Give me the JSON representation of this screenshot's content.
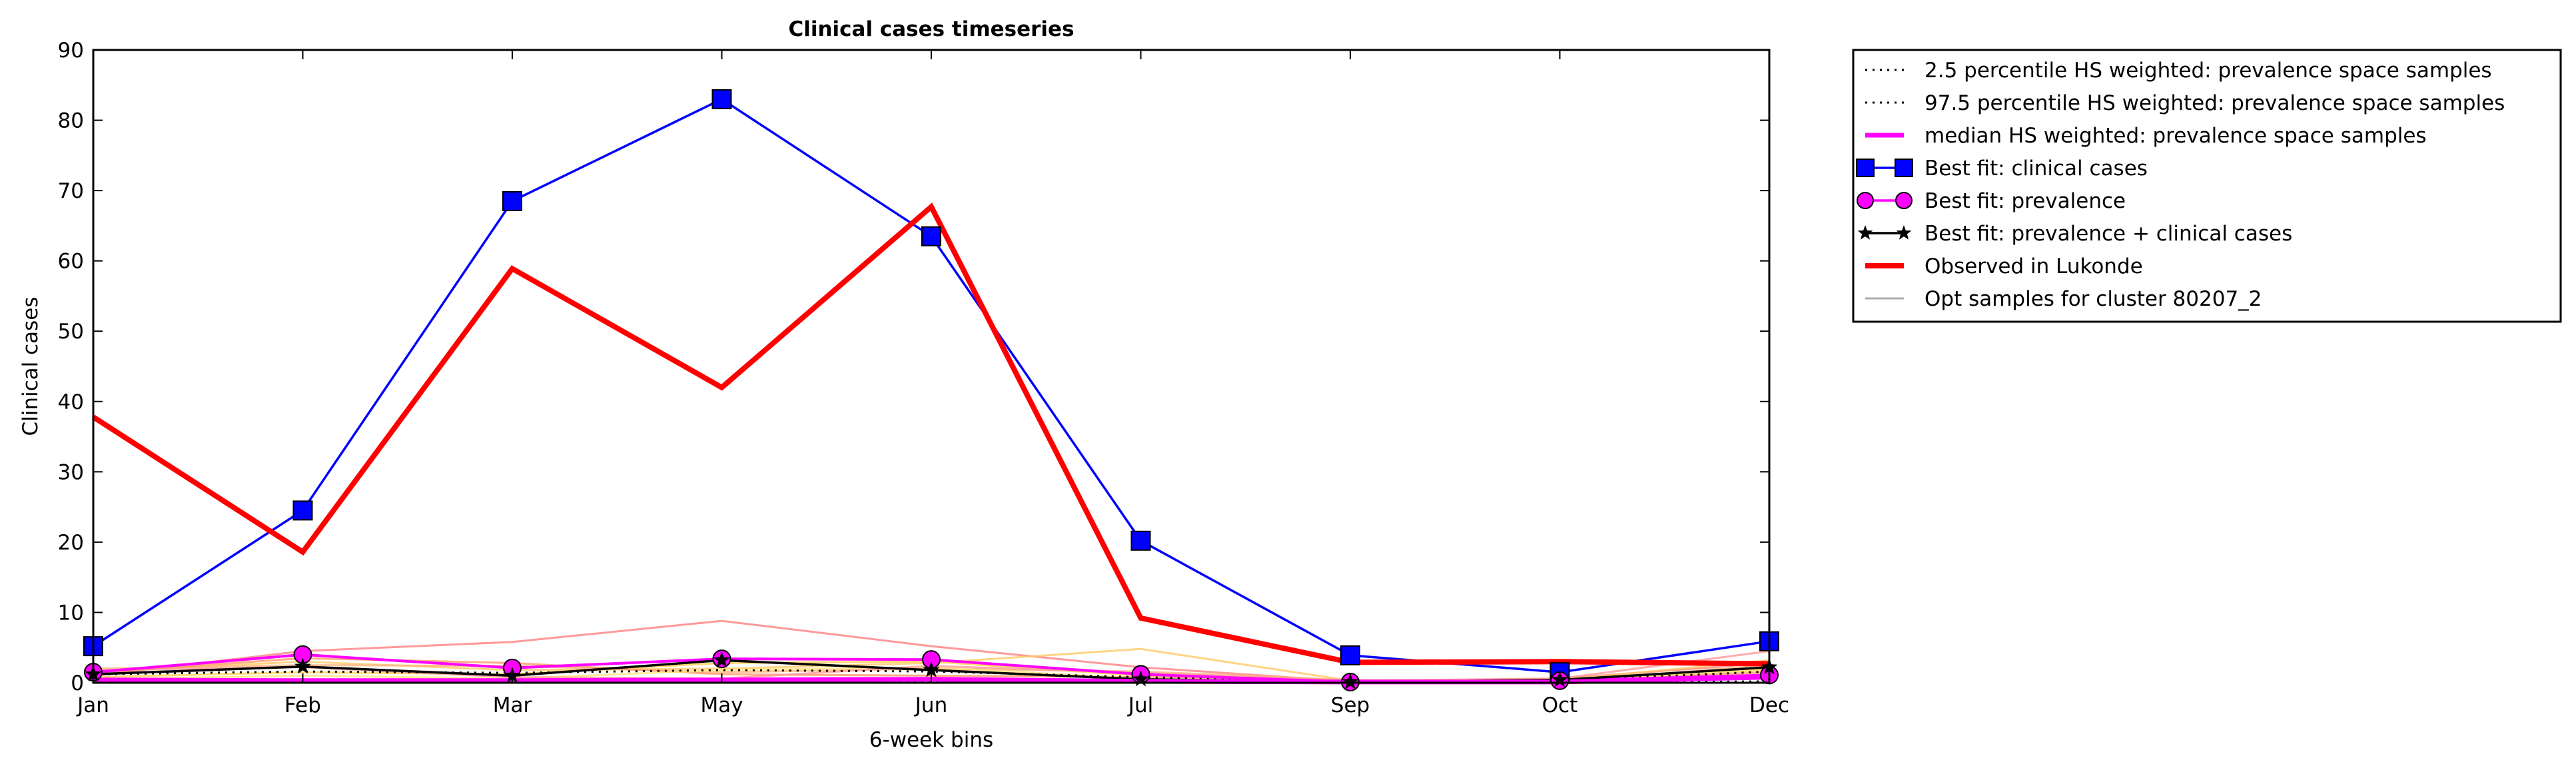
{
  "chart_data": {
    "type": "line",
    "title": "Clinical cases timeseries",
    "xlabel": "6-week bins",
    "ylabel": "Clinical cases",
    "categories": [
      "Jan",
      "Feb",
      "Mar",
      "May",
      "Jun",
      "Jul",
      "Sep",
      "Oct",
      "Dec"
    ],
    "ylim": [
      0,
      90
    ],
    "yticks": [
      0,
      10,
      20,
      30,
      40,
      50,
      60,
      70,
      80,
      90
    ],
    "grid": false,
    "legend_position": "outside-top-right",
    "legend": [
      {
        "label": "2.5 percentile HS weighted: prevalence space samples",
        "style": "dotted",
        "color": "#000000"
      },
      {
        "label": "97.5 percentile HS weighted: prevalence space samples",
        "style": "dotted",
        "color": "#000000"
      },
      {
        "label": "median HS weighted: prevalence space samples",
        "style": "solid",
        "color": "#ff00ff"
      },
      {
        "label": "Best fit: clinical cases",
        "style": "solid",
        "color": "#0000ff",
        "marker": "square"
      },
      {
        "label": "Best fit: prevalence",
        "style": "solid",
        "color": "#ff00ff",
        "marker": "circle"
      },
      {
        "label": "Best fit: prevalence + clinical cases",
        "style": "solid",
        "color": "#000000",
        "marker": "star"
      },
      {
        "label": "Observed in Lukonde",
        "style": "solid",
        "color": "#ff0000"
      },
      {
        "label": "Opt samples for cluster 80207_2",
        "style": "solid",
        "color": "#999999"
      }
    ],
    "series": [
      {
        "name": "Best fit: clinical cases",
        "color": "#0000ff",
        "marker": "square",
        "values": [
          5.2,
          24.5,
          68.5,
          83,
          63.5,
          20.2,
          3.9,
          1.5,
          5.9
        ]
      },
      {
        "name": "Observed in Lukonde",
        "color": "#ff0000",
        "values": [
          37.8,
          18.6,
          58.9,
          42,
          67.7,
          9.2,
          2.9,
          3.0,
          2.7
        ]
      },
      {
        "name": "Best fit: prevalence",
        "color": "#ff00ff",
        "marker": "circle",
        "values": [
          1.5,
          4.0,
          2.1,
          3.4,
          3.3,
          1.2,
          0.1,
          0.3,
          1.1
        ]
      },
      {
        "name": "Best fit: prevalence + clinical cases",
        "color": "#000000",
        "marker": "star",
        "values": [
          1.2,
          2.3,
          1.0,
          3.2,
          1.8,
          0.5,
          0.1,
          0.4,
          2.2
        ]
      },
      {
        "name": "median HS weighted: prevalence space samples",
        "color": "#ff00ff",
        "values": [
          0.4,
          0.3,
          0.3,
          0.4,
          0.5,
          0.2,
          0.1,
          0.1,
          0.8
        ]
      }
    ],
    "sample_lines": [
      {
        "color": "#ff7f7f",
        "values": [
          1.0,
          4.5,
          5.8,
          8.8,
          5.2,
          2.2,
          0.2,
          0.6,
          2.8
        ]
      },
      {
        "color": "#ffc966",
        "values": [
          1.6,
          3.0,
          1.8,
          2.0,
          2.8,
          4.8,
          0.3,
          0.4,
          3.2
        ]
      },
      {
        "color": "#ffb380",
        "values": [
          2.0,
          2.5,
          2.4,
          1.5,
          2.0,
          1.6,
          0.4,
          0.2,
          2.5
        ]
      },
      {
        "color": "#ffd24d",
        "values": [
          0.8,
          1.5,
          1.2,
          2.8,
          3.0,
          1.0,
          0.3,
          0.5,
          1.8
        ]
      },
      {
        "color": "#ff9966",
        "values": [
          1.4,
          3.5,
          2.8,
          1.2,
          1.0,
          0.8,
          0.2,
          0.3,
          1.5
        ]
      },
      {
        "color": "#ffe680",
        "values": [
          0.5,
          1.0,
          0.6,
          1.8,
          2.2,
          0.6,
          0.1,
          0.2,
          2.0
        ]
      },
      {
        "color": "#ff9999",
        "values": [
          1.8,
          2.2,
          0.8,
          0.6,
          2.4,
          1.4,
          0.3,
          0.6,
          4.5
        ]
      }
    ],
    "percentile_lines": [
      {
        "label": "2.5",
        "values": [
          0.1,
          0.1,
          0.1,
          0.1,
          0.1,
          0.1,
          0.0,
          0.0,
          0.2
        ]
      },
      {
        "label": "97.5",
        "values": [
          1.2,
          1.6,
          1.4,
          1.8,
          1.6,
          0.8,
          0.2,
          0.3,
          1.6
        ]
      }
    ]
  }
}
